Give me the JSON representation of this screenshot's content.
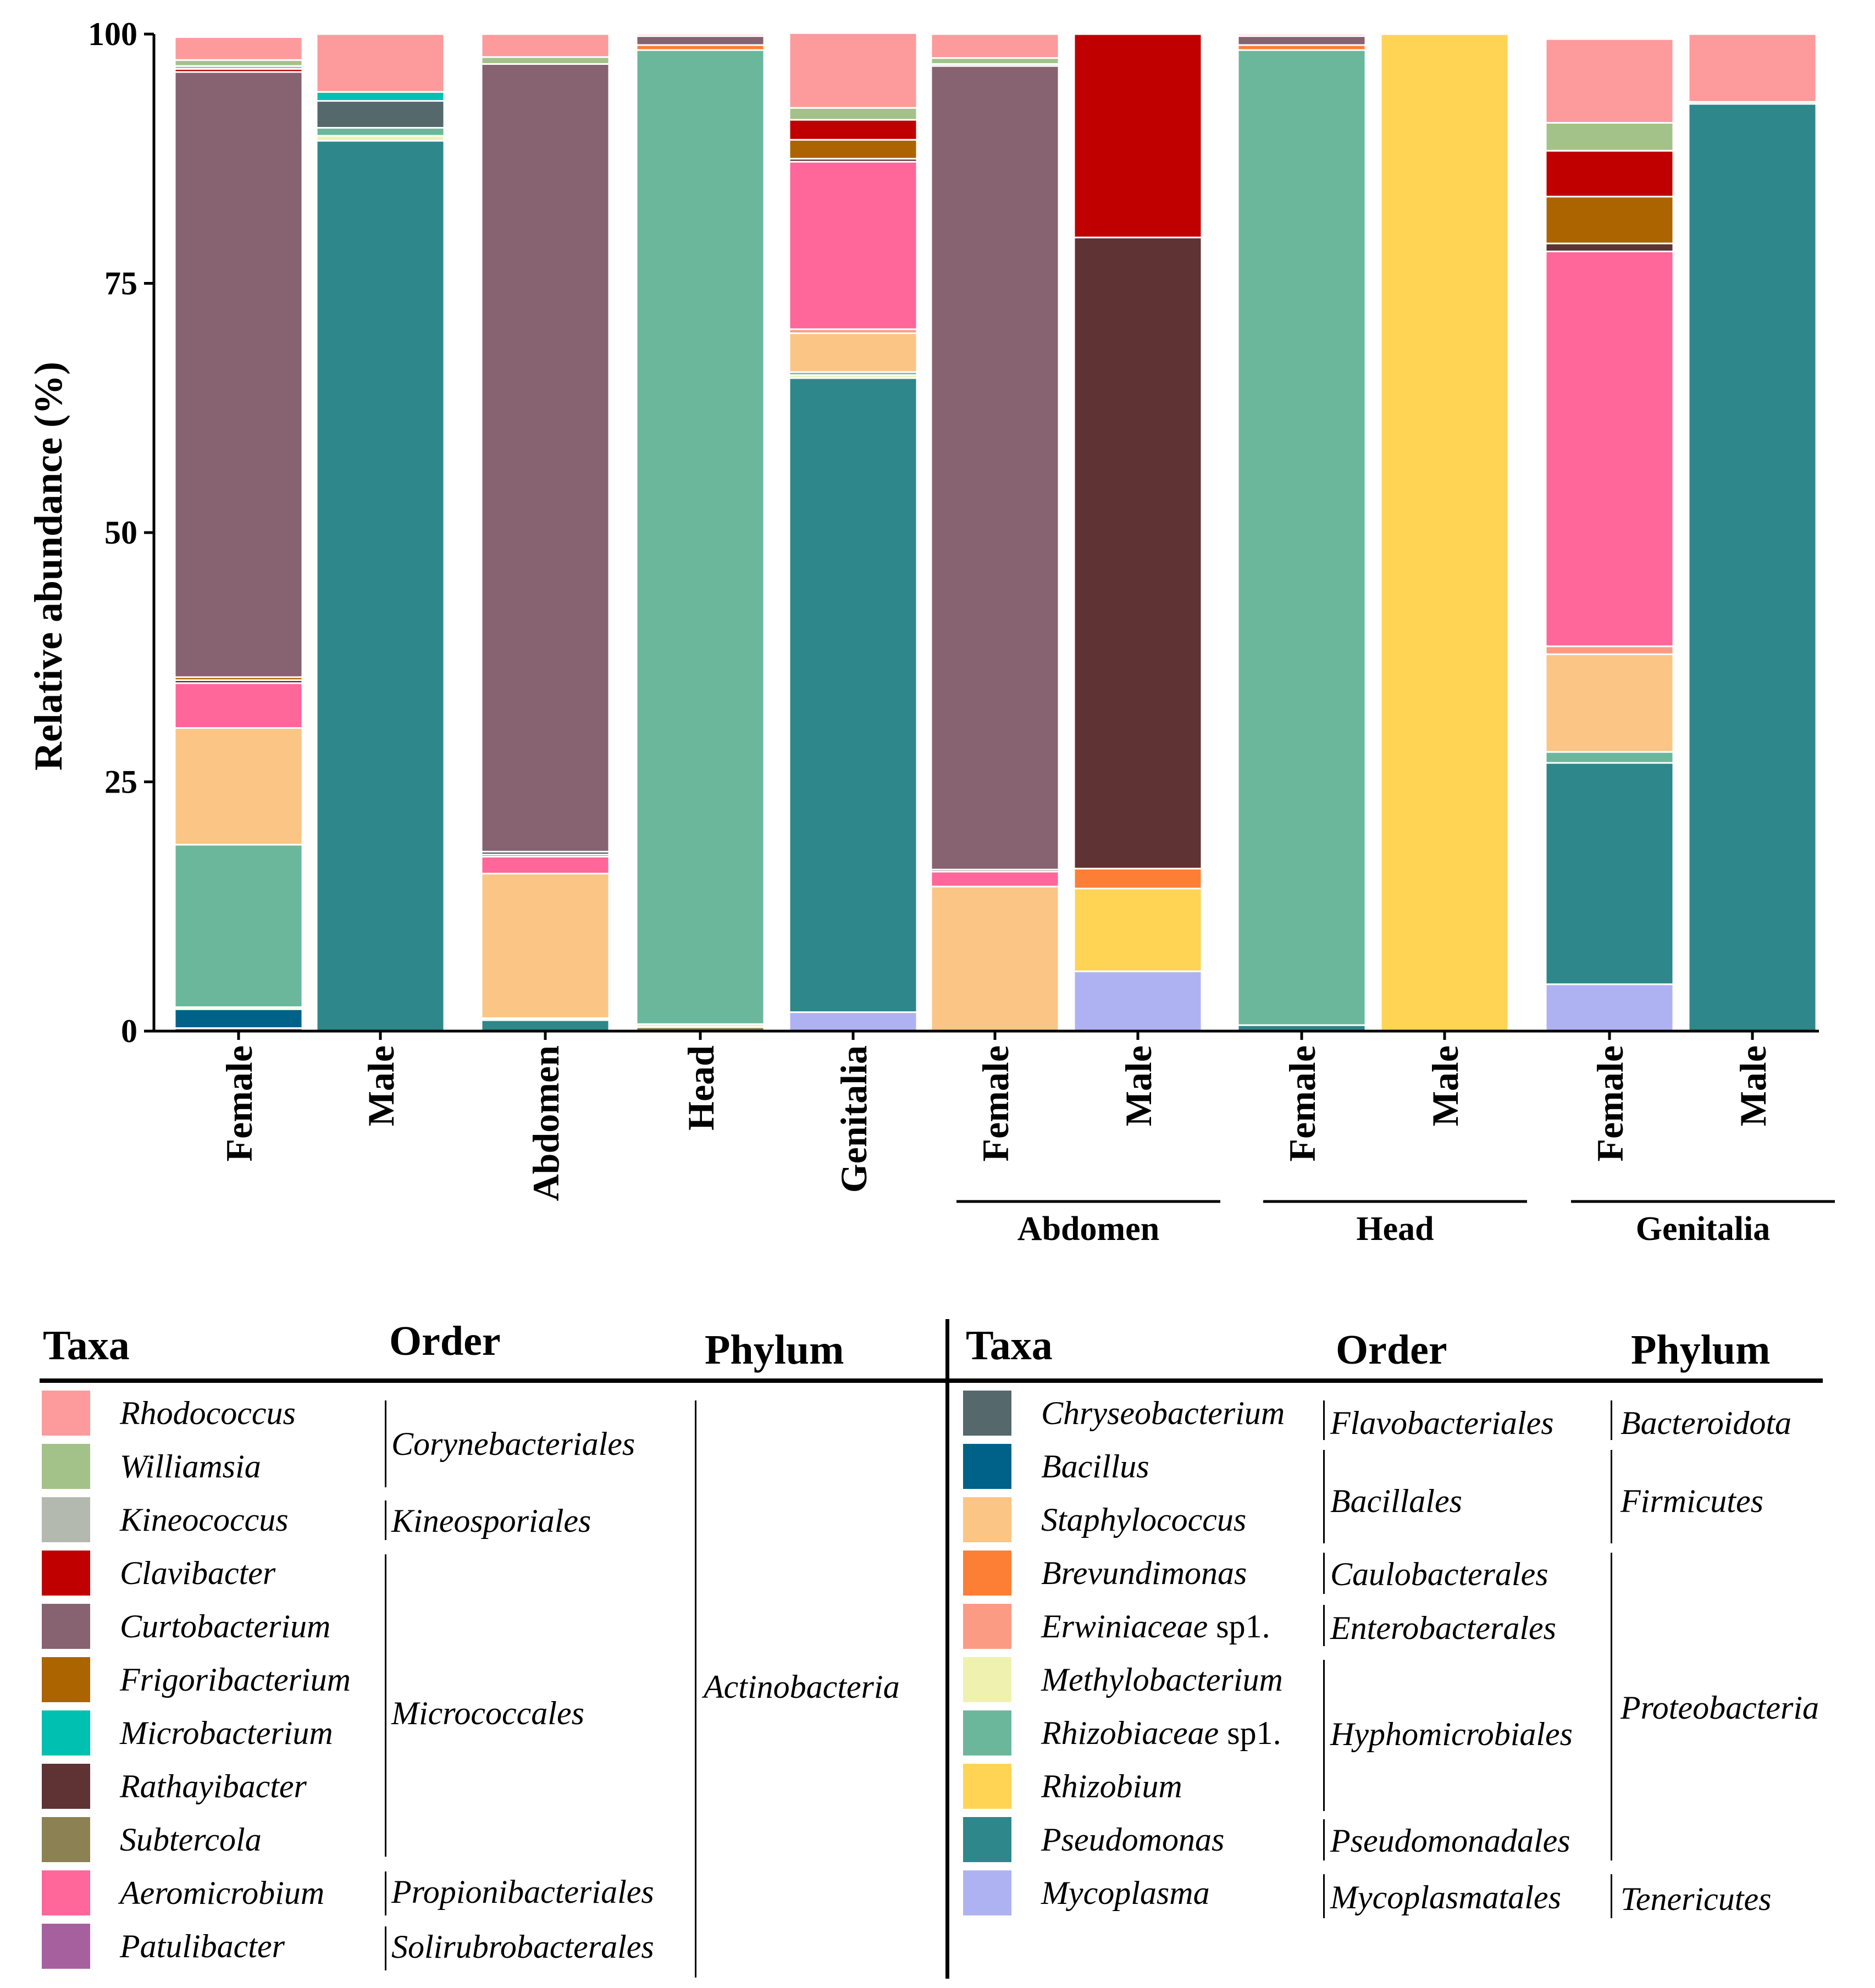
{
  "chart_data": {
    "type": "stacked-bar",
    "ylabel": "Relative abundance (%)",
    "ylim": [
      0,
      100
    ],
    "yticks": [
      0,
      25,
      50,
      75,
      100
    ],
    "categories": [
      "Female",
      "Male",
      "Abdomen",
      "Head",
      "Genitalia",
      "Female",
      "Male",
      "Female",
      "Male",
      "Female",
      "Male"
    ],
    "groups": [
      {
        "label": "Abdomen",
        "from": 5,
        "to": 6
      },
      {
        "label": "Head",
        "from": 7,
        "to": 8
      },
      {
        "label": "Genitalia",
        "from": 9,
        "to": 10
      }
    ],
    "series": [
      {
        "name": "Patulibacter",
        "color": "#A6609E",
        "values": [
          0.3,
          0,
          0,
          0,
          0,
          0,
          0,
          0,
          0,
          0,
          0
        ]
      },
      {
        "name": "Mycoplasma",
        "color": "#AFB2F2",
        "values": [
          0,
          0,
          0,
          0,
          1.9,
          0,
          6,
          0,
          0,
          4.7,
          0
        ]
      },
      {
        "name": "Bacillus",
        "color": "#006289",
        "values": [
          1.9,
          0,
          0,
          0,
          0,
          0,
          0,
          0,
          0,
          0,
          0
        ]
      },
      {
        "name": "Pseudomonas",
        "color": "#2E878B",
        "values": [
          0,
          89.3,
          1.1,
          0,
          63.6,
          0,
          0,
          0.6,
          0,
          22.2,
          93
        ]
      },
      {
        "name": "Subtercola",
        "color": "#8C8153",
        "values": [
          0,
          0,
          0,
          0.4,
          0,
          0,
          0,
          0,
          0,
          0,
          0
        ]
      },
      {
        "name": "Methylobacterium",
        "color": "#EEF2AE",
        "values": [
          0.2,
          0.5,
          0.2,
          0.3,
          0.3,
          0,
          0,
          0,
          0,
          0,
          0
        ]
      },
      {
        "name": "Rhizobiaceae sp1.",
        "color": "#6BB79C",
        "values": [
          16.3,
          0.8,
          0,
          97.7,
          0.3,
          0,
          0,
          97.8,
          0,
          1.1,
          0
        ]
      },
      {
        "name": "Staphylococcus",
        "color": "#FBC585",
        "values": [
          11.7,
          0,
          14.5,
          0,
          3.9,
          14.5,
          0,
          0,
          0,
          9.8,
          0
        ]
      },
      {
        "name": "Erwiniaceae sp1.",
        "color": "#FC9B84",
        "values": [
          0,
          0,
          0,
          0,
          0.4,
          0,
          0,
          0,
          0,
          0.8,
          0
        ]
      },
      {
        "name": "Rhizobium",
        "color": "#FFD455",
        "values": [
          0,
          0,
          0,
          0,
          0,
          0,
          8.3,
          0,
          100,
          0,
          0
        ]
      },
      {
        "name": "Brevundimonas",
        "color": "#FD7F35",
        "values": [
          0,
          0,
          0,
          0.5,
          0,
          0,
          2,
          0.5,
          0,
          0,
          0
        ]
      },
      {
        "name": "Aeromicrobium",
        "color": "#FF6699",
        "values": [
          4.5,
          0,
          1.7,
          0,
          16.8,
          1.5,
          0,
          0,
          0,
          39.6,
          0
        ]
      },
      {
        "name": "Rathayibacter",
        "color": "#5F3233",
        "values": [
          0.3,
          0,
          0.2,
          0,
          0.3,
          0.2,
          63.3,
          0,
          0,
          0.8,
          0
        ]
      },
      {
        "name": "Frigoribacterium",
        "color": "#AC6400",
        "values": [
          0.3,
          0,
          0,
          0,
          1.9,
          0,
          0,
          0,
          0,
          4.7,
          0
        ]
      },
      {
        "name": "Chryseobacterium",
        "color": "#55696D",
        "values": [
          0,
          2.7,
          0.3,
          0,
          0,
          0,
          0,
          0,
          0,
          0,
          0
        ]
      },
      {
        "name": "Microbacterium",
        "color": "#00C0B2",
        "values": [
          0,
          0.9,
          0,
          0,
          0,
          0,
          0,
          0,
          0,
          0,
          0
        ]
      },
      {
        "name": "Curtobacterium",
        "color": "#876270",
        "values": [
          60.7,
          0,
          79,
          0.9,
          0,
          80.6,
          0,
          0.9,
          0,
          0,
          0
        ]
      },
      {
        "name": "Clavibacter",
        "color": "#C00000",
        "values": [
          0.3,
          0,
          0,
          0,
          2,
          0,
          20.4,
          0,
          0,
          4.6,
          0
        ]
      },
      {
        "name": "Kineococcus",
        "color": "#B4B9AF",
        "values": [
          0.3,
          0,
          0,
          0,
          0,
          0.2,
          0,
          0,
          0,
          0,
          0
        ]
      },
      {
        "name": "Williamsia",
        "color": "#A3C289",
        "values": [
          0.6,
          0,
          0.7,
          0,
          1.2,
          0.6,
          0,
          0,
          0,
          2.8,
          0.2
        ]
      },
      {
        "name": "Rhodococcus",
        "color": "#FD9A9C",
        "values": [
          2.3,
          5.8,
          2.3,
          0.2,
          7.5,
          2.4,
          0,
          0.2,
          0,
          8.4,
          6.8
        ]
      }
    ]
  },
  "legend": {
    "left": {
      "headers": {
        "taxa": "Taxa",
        "order": "Order",
        "phylum": "Phylum"
      },
      "items": [
        {
          "name": "Rhodococcus",
          "color": "#FD9A9C"
        },
        {
          "name": "Williamsia",
          "color": "#A3C289"
        },
        {
          "name": "Kineococcus",
          "color": "#B4B9AF"
        },
        {
          "name": "Clavibacter",
          "color": "#C00000"
        },
        {
          "name": "Curtobacterium",
          "color": "#876270"
        },
        {
          "name": "Frigoribacterium",
          "color": "#AC6400"
        },
        {
          "name": "Microbacterium",
          "color": "#00C0B2"
        },
        {
          "name": "Rathayibacter",
          "color": "#5F3233"
        },
        {
          "name": "Subtercola",
          "color": "#8C8153"
        },
        {
          "name": "Aeromicrobium",
          "color": "#FF6699"
        },
        {
          "name": "Patulibacter",
          "color": "#A6609E"
        }
      ],
      "orders": [
        "Corynebacteriales",
        "Kineosporiales",
        "Micrococcales",
        "Propionibacteriales",
        "Solirubrobacterales"
      ],
      "phyla": [
        "Actinobacteria"
      ]
    },
    "right": {
      "headers": {
        "taxa": "Taxa",
        "order": "Order",
        "phylum": "Phylum"
      },
      "items": [
        {
          "name": "Chryseobacterium",
          "color": "#55696D"
        },
        {
          "name": "Bacillus",
          "color": "#006289"
        },
        {
          "name": "Staphylococcus",
          "color": "#FBC585"
        },
        {
          "name": "Brevundimonas",
          "color": "#FD7F35"
        },
        {
          "name": "Erwiniaceae",
          "suffix": " sp1.",
          "color": "#FC9B84"
        },
        {
          "name": "Methylobacterium",
          "color": "#EEF2AE"
        },
        {
          "name": "Rhizobiaceae",
          "suffix": " sp1.",
          "color": "#6BB79C"
        },
        {
          "name": "Rhizobium",
          "color": "#FFD455"
        },
        {
          "name": "Pseudomonas",
          "color": "#2E878B"
        },
        {
          "name": "Mycoplasma",
          "color": "#AFB2F2"
        }
      ],
      "orders": [
        "Flavobacteriales",
        "Bacillales",
        "Caulobacterales",
        "Enterobacterales",
        "Hyphomicrobiales",
        "Pseudomonadales",
        "Mycoplasmatales"
      ],
      "phyla": [
        "Bacteroidota",
        "Firmicutes",
        "Proteobacteria",
        "Tenericutes"
      ]
    }
  }
}
